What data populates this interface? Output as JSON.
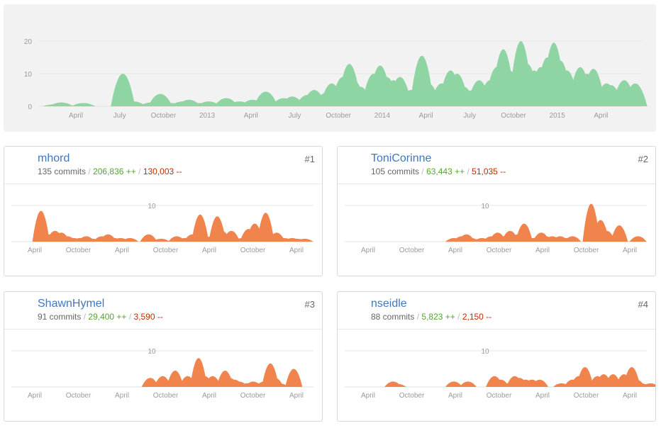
{
  "chart_data": [
    {
      "type": "area",
      "x_labels": [
        "April",
        "July",
        "October",
        "2013",
        "April",
        "July",
        "October",
        "2014",
        "April",
        "July",
        "October",
        "2015",
        "April"
      ],
      "y_ticks": [
        0,
        10,
        20
      ],
      "ylim": [
        0,
        22
      ],
      "color": "#8fd4a3",
      "peaks": [
        [
          0.2,
          0.6
        ],
        [
          0.5,
          1.2
        ],
        [
          1.5,
          1
        ],
        [
          3.3,
          10
        ],
        [
          3.8,
          1.5
        ],
        [
          4.6,
          1.2
        ],
        [
          5,
          3.8
        ],
        [
          5.5,
          1
        ],
        [
          6,
          1.5
        ],
        [
          6.3,
          2
        ],
        [
          6.8,
          1
        ],
        [
          7.2,
          1.5
        ],
        [
          8,
          2.5
        ],
        [
          8.3,
          1.2
        ],
        [
          8.6,
          1.5
        ],
        [
          8.9,
          1
        ],
        [
          9.2,
          2
        ],
        [
          9.6,
          1.5
        ],
        [
          9.8,
          4.5
        ],
        [
          10.2,
          1.5
        ],
        [
          10.6,
          2.5
        ],
        [
          11,
          3
        ],
        [
          11.3,
          2
        ],
        [
          11.7,
          3.5
        ],
        [
          12,
          5
        ],
        [
          12.2,
          3
        ],
        [
          12.5,
          4
        ],
        [
          12.8,
          7
        ],
        [
          13,
          5.5
        ],
        [
          13.3,
          9
        ],
        [
          13.6,
          13
        ],
        [
          13.8,
          8
        ],
        [
          14.1,
          6
        ],
        [
          14.4,
          5
        ],
        [
          14.7,
          10
        ],
        [
          15,
          12.5
        ],
        [
          15.3,
          9
        ],
        [
          15.6,
          8
        ],
        [
          15.9,
          9
        ],
        [
          16.4,
          5
        ],
        [
          16.7,
          6
        ],
        [
          16.9,
          15.5
        ],
        [
          17.2,
          7
        ],
        [
          17.5,
          5
        ],
        [
          17.8,
          7
        ],
        [
          18,
          4
        ],
        [
          18.2,
          11
        ],
        [
          18.5,
          10
        ],
        [
          18.8,
          6
        ],
        [
          19.2,
          5
        ],
        [
          19.5,
          8
        ],
        [
          19.7,
          5
        ],
        [
          20,
          8
        ],
        [
          20.3,
          12
        ],
        [
          20.6,
          17.5
        ],
        [
          20.9,
          11
        ],
        [
          21.2,
          9
        ],
        [
          21.4,
          20
        ],
        [
          21.7,
          13
        ],
        [
          22,
          11
        ],
        [
          22.3,
          12
        ],
        [
          22.6,
          15
        ],
        [
          22.9,
          19.5
        ],
        [
          23.2,
          14
        ],
        [
          23.5,
          11
        ],
        [
          23.8,
          8
        ],
        [
          24.1,
          12
        ],
        [
          24.4,
          10
        ],
        [
          24.7,
          11.5
        ],
        [
          25,
          5
        ],
        [
          25.3,
          7
        ],
        [
          25.5,
          6.5
        ],
        [
          25.8,
          5
        ],
        [
          26.1,
          8
        ],
        [
          26.4,
          6
        ],
        [
          26.6,
          7
        ]
      ]
    },
    {
      "type": "area",
      "title": "mhord",
      "x_labels": [
        "April",
        "October",
        "April",
        "October",
        "April",
        "October",
        "April"
      ],
      "y_ticks": [
        10
      ],
      "ylim": [
        0,
        11
      ],
      "color": "#f0844c",
      "peaks": [
        [
          1.9,
          8.5
        ],
        [
          2.5,
          2
        ],
        [
          2.8,
          3
        ],
        [
          3.2,
          2.5
        ],
        [
          3.6,
          1.5
        ],
        [
          4,
          1
        ],
        [
          4.4,
          1
        ],
        [
          4.8,
          1.5
        ],
        [
          5.2,
          0.8
        ],
        [
          5.8,
          1.5
        ],
        [
          6.2,
          2
        ],
        [
          6.6,
          1
        ],
        [
          7,
          1
        ],
        [
          7.6,
          1
        ],
        [
          8.8,
          2
        ],
        [
          9.6,
          0.8
        ],
        [
          10.6,
          1.5
        ],
        [
          11.1,
          1
        ],
        [
          11.6,
          2
        ],
        [
          12.1,
          7.5
        ],
        [
          12.8,
          1.5
        ],
        [
          13.2,
          7
        ],
        [
          13.5,
          3
        ],
        [
          14.1,
          3
        ],
        [
          14.4,
          1
        ],
        [
          14.8,
          1
        ],
        [
          15.2,
          3.5
        ],
        [
          15.6,
          5
        ],
        [
          16,
          2
        ],
        [
          16.3,
          8
        ],
        [
          16.7,
          2
        ],
        [
          17,
          2.5
        ],
        [
          17.5,
          1
        ],
        [
          18,
          1
        ],
        [
          18.3,
          0.8
        ],
        [
          18.8,
          0.8
        ]
      ]
    },
    {
      "type": "area",
      "title": "ToniCorinne",
      "x_labels": [
        "April",
        "October",
        "April",
        "October",
        "April",
        "October",
        "April"
      ],
      "y_ticks": [
        10
      ],
      "ylim": [
        0,
        11
      ],
      "color": "#f0844c",
      "peaks": [
        [
          7,
          1
        ],
        [
          7.5,
          1.5
        ],
        [
          7.8,
          2
        ],
        [
          8.1,
          1
        ],
        [
          8.8,
          1
        ],
        [
          9.4,
          1.5
        ],
        [
          9.8,
          2.5
        ],
        [
          10.2,
          1.5
        ],
        [
          10.6,
          3
        ],
        [
          11.1,
          2
        ],
        [
          11.5,
          5
        ],
        [
          12.1,
          1
        ],
        [
          12.6,
          2.5
        ],
        [
          12.9,
          1.5
        ],
        [
          13.3,
          1.5
        ],
        [
          13.8,
          1.5
        ],
        [
          14.2,
          1
        ],
        [
          14.6,
          1.5
        ],
        [
          15.8,
          10.5
        ],
        [
          16.4,
          6
        ],
        [
          16.8,
          3
        ],
        [
          17.6,
          4.5
        ],
        [
          18.8,
          1.5
        ]
      ]
    },
    {
      "type": "area",
      "title": "ShawnHymel",
      "x_labels": [
        "April",
        "October",
        "April",
        "October",
        "April",
        "October",
        "April"
      ],
      "y_ticks": [
        10
      ],
      "ylim": [
        0,
        11
      ],
      "color": "#f0844c",
      "peaks": [
        [
          8.9,
          2.5
        ],
        [
          9.4,
          1
        ],
        [
          9.7,
          3
        ],
        [
          10,
          1.5
        ],
        [
          10.5,
          4.5
        ],
        [
          10.8,
          1
        ],
        [
          11.3,
          3
        ],
        [
          11.5,
          2
        ],
        [
          12,
          8
        ],
        [
          12.4,
          3
        ],
        [
          12.9,
          3
        ],
        [
          13.4,
          1
        ],
        [
          13.7,
          4.5
        ],
        [
          14,
          2.5
        ],
        [
          14.3,
          2
        ],
        [
          14.6,
          1.5
        ],
        [
          15.1,
          1
        ],
        [
          15.5,
          1.5
        ],
        [
          15.9,
          1
        ],
        [
          16.2,
          1.5
        ],
        [
          16.6,
          6.5
        ],
        [
          16.9,
          2.5
        ],
        [
          17.2,
          1
        ],
        [
          18.1,
          5
        ]
      ]
    },
    {
      "type": "area",
      "title": "nseidle",
      "x_labels": [
        "April",
        "October",
        "April",
        "October",
        "April",
        "October",
        "April"
      ],
      "y_ticks": [
        10
      ],
      "ylim": [
        0,
        11
      ],
      "color": "#f0844c",
      "peaks": [
        [
          3.1,
          1.5
        ],
        [
          3.4,
          0.8
        ],
        [
          7,
          1.5
        ],
        [
          7.9,
          1.5
        ],
        [
          9.6,
          3
        ],
        [
          10,
          2
        ],
        [
          10.5,
          1
        ],
        [
          10.9,
          3
        ],
        [
          11.2,
          2.5
        ],
        [
          11.6,
          2
        ],
        [
          12,
          2
        ],
        [
          12.5,
          2
        ],
        [
          13.9,
          1
        ],
        [
          14.6,
          2
        ],
        [
          15,
          3
        ],
        [
          15.4,
          5.5
        ],
        [
          15.8,
          1
        ],
        [
          16.2,
          3
        ],
        [
          16.6,
          3.5
        ],
        [
          17.2,
          3.5
        ],
        [
          17.5,
          2
        ],
        [
          17.9,
          3.5
        ],
        [
          18.4,
          5.5
        ],
        [
          18.7,
          2
        ],
        [
          19,
          1
        ],
        [
          19.6,
          1
        ]
      ]
    }
  ],
  "contributors": [
    {
      "rank": "#1",
      "login": "mhord",
      "commits": "135 commits",
      "additions": "206,836 ++",
      "deletions": "130,003 --"
    },
    {
      "rank": "#2",
      "login": "ToniCorinne",
      "commits": "105 commits",
      "additions": "63,443 ++",
      "deletions": "51,035 --"
    },
    {
      "rank": "#3",
      "login": "ShawnHymel",
      "commits": "91 commits",
      "additions": "29,400 ++",
      "deletions": "3,590 --"
    },
    {
      "rank": "#4",
      "login": "nseidle",
      "commits": "88 commits",
      "additions": "5,823 ++",
      "deletions": "2,150 --"
    }
  ],
  "separator": "/"
}
